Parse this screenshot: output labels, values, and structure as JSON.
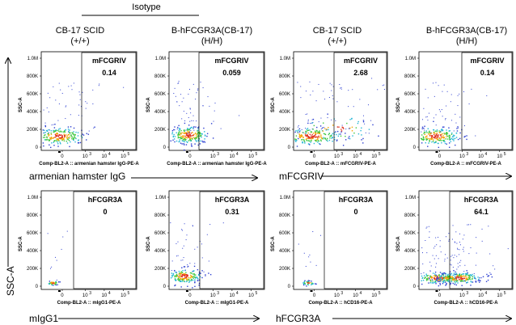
{
  "figure": {
    "isotype_label": "Isotype",
    "y_axis_label": "SSC-A",
    "column_headers": [
      {
        "line1": "CB-17 SCID",
        "line2": "(+/+)"
      },
      {
        "line1": "B-hFCGR3A(CB-17)",
        "line2": "(H/H)"
      },
      {
        "line1": "CB-17 SCID",
        "line2": "(+/+)"
      },
      {
        "line1": "B-hFCGR3A(CB-17)",
        "line2": "(H/H)"
      }
    ],
    "row_arrow_labels": [
      {
        "left": "armenian hamster IgG",
        "right": "mFCGRIV"
      },
      {
        "left": "mIgG1",
        "right": "hFCGR3A"
      }
    ]
  },
  "chart_data": [
    {
      "type": "scatter",
      "panel": "top-1",
      "gate_label": "mFCGRIV",
      "gate_value": "0.14",
      "ylabel": "SSC-A",
      "xlabel": "Comp-BL2-A :: armenian hamster IgG-PE-A",
      "yticks": [
        "0",
        "200K",
        "400K",
        "600K",
        "800K",
        "1.0M"
      ],
      "xticks": [
        "0",
        "10",
        "10",
        "10"
      ],
      "xtick_exps": [
        "",
        "3",
        "4",
        "5"
      ],
      "ylim": [
        0,
        1000000
      ],
      "x": [
        0,
        0,
        0,
        100
      ],
      "y": [
        80000,
        120000,
        150000,
        100000
      ]
    },
    {
      "type": "scatter",
      "panel": "top-2",
      "gate_label": "mFCGRIV",
      "gate_value": "0.059",
      "ylabel": "SSC-A",
      "xlabel": "Comp-BL2-A :: armenian hamster IgG-PE-A",
      "yticks": [
        "0",
        "200K",
        "400K",
        "600K",
        "800K",
        "1.0M"
      ],
      "xticks": [
        "0",
        "10",
        "10",
        "10"
      ],
      "xtick_exps": [
        "",
        "3",
        "4",
        "5"
      ],
      "ylim": [
        0,
        1000000
      ],
      "x": [
        0,
        0,
        0,
        100
      ],
      "y": [
        80000,
        120000,
        150000,
        100000
      ]
    },
    {
      "type": "scatter",
      "panel": "top-3",
      "gate_label": "mFCGRIV",
      "gate_value": "2.68",
      "ylabel": "SSC-A",
      "xlabel": "Comp-BL2-A :: mFCGRIV-PE-A",
      "yticks": [
        "0",
        "200K",
        "400K",
        "600K",
        "800K",
        "1.0M"
      ],
      "xticks": [
        "0",
        "10",
        "10",
        "10"
      ],
      "xtick_exps": [
        "",
        "3",
        "4",
        "5"
      ],
      "ylim": [
        0,
        1000000
      ],
      "x": [
        0,
        0,
        0,
        1000
      ],
      "y": [
        80000,
        120000,
        150000,
        100000
      ]
    },
    {
      "type": "scatter",
      "panel": "top-4",
      "gate_label": "mFCGRIV",
      "gate_value": "0.14",
      "ylabel": "SSC-A",
      "xlabel": "Comp-BL2-A :: mFCGRIV-PE-A",
      "yticks": [
        "0",
        "200K",
        "400K",
        "600K",
        "800K",
        "1.0M"
      ],
      "xticks": [
        "0",
        "10",
        "10",
        "10"
      ],
      "xtick_exps": [
        "",
        "3",
        "4",
        "5"
      ],
      "ylim": [
        0,
        1000000
      ],
      "x": [
        0,
        0,
        0,
        100
      ],
      "y": [
        80000,
        120000,
        150000,
        100000
      ]
    },
    {
      "type": "scatter",
      "panel": "bot-1",
      "gate_label": "hFCGR3A",
      "gate_value": "0",
      "ylabel": "SSC-A",
      "xlabel": "Comp-BL2-A :: mIgG1-PE-A",
      "yticks": [
        "0",
        "200K",
        "400K",
        "600K",
        "800K",
        "1.0M"
      ],
      "xticks": [
        "0",
        "10",
        "10",
        "10"
      ],
      "xtick_exps": [
        "",
        "3",
        "4",
        "5"
      ],
      "ylim": [
        0,
        1000000
      ],
      "x": [
        0,
        0
      ],
      "y": [
        60000,
        40000
      ]
    },
    {
      "type": "scatter",
      "panel": "bot-2",
      "gate_label": "hFCGR3A",
      "gate_value": "0.31",
      "ylabel": "SSC-A",
      "xlabel": "Comp-BL2-A :: mIgG1-PE-A",
      "yticks": [
        "0",
        "200K",
        "400K",
        "600K",
        "800K",
        "1.0M"
      ],
      "xticks": [
        "0",
        "10",
        "10",
        "10"
      ],
      "xtick_exps": [
        "",
        "3",
        "4",
        "5"
      ],
      "ylim": [
        0,
        1000000
      ],
      "x": [
        0,
        0,
        0
      ],
      "y": [
        80000,
        120000,
        150000
      ]
    },
    {
      "type": "scatter",
      "panel": "bot-3",
      "gate_label": "hFCGR3A",
      "gate_value": "0",
      "ylabel": "SSC-A",
      "xlabel": "Comp-BL2-A :: hCD16-PE-A",
      "yticks": [
        "0",
        "200K",
        "400K",
        "600K",
        "800K",
        "1.0M"
      ],
      "xticks": [
        "0",
        "10",
        "10",
        "10"
      ],
      "xtick_exps": [
        "",
        "3",
        "4",
        "5"
      ],
      "ylim": [
        0,
        1000000
      ],
      "x": [
        0,
        0
      ],
      "y": [
        60000,
        40000
      ]
    },
    {
      "type": "scatter",
      "panel": "bot-4",
      "gate_label": "hFCGR3A",
      "gate_value": "64.1",
      "ylabel": "SSC-A",
      "xlabel": "Comp-BL2-A :: hCD16-PE-A",
      "yticks": [
        "0",
        "200K",
        "400K",
        "600K",
        "800K",
        "1.0M"
      ],
      "xticks": [
        "0",
        "10",
        "10",
        "10"
      ],
      "xtick_exps": [
        "",
        "3",
        "4",
        "5"
      ],
      "ylim": [
        0,
        1000000
      ],
      "x": [
        0,
        1000,
        3000,
        10000
      ],
      "y": [
        80000,
        100000,
        110000,
        90000
      ]
    }
  ]
}
